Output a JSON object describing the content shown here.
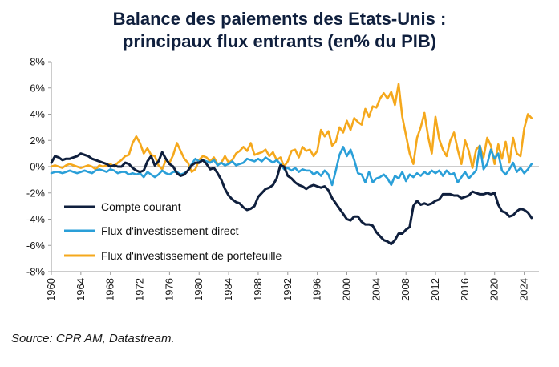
{
  "chart_data": {
    "type": "line",
    "title_line1": "Balance des paiements des Etats-Unis :",
    "title_line2": "principaux flux entrants (en% du PIB)",
    "xlabel": "",
    "ylabel": "",
    "xlim": [
      1960,
      2026
    ],
    "ylim": [
      -8,
      8
    ],
    "y_ticks": [
      8,
      6,
      4,
      2,
      0,
      -2,
      -4,
      -6,
      -8
    ],
    "y_tick_labels": [
      "8%",
      "6%",
      "4%",
      "2%",
      "0%",
      "-2%",
      "-4%",
      "-6%",
      "-8%"
    ],
    "x_ticks": [
      1960,
      1964,
      1968,
      1972,
      1976,
      1980,
      1984,
      1988,
      1992,
      1996,
      2000,
      2004,
      2008,
      2012,
      2016,
      2020,
      2024
    ],
    "x_tick_labels": [
      "1960",
      "1964",
      "1968",
      "1972",
      "1976",
      "1980",
      "1984",
      "1988",
      "1992",
      "1996",
      "2000",
      "2004",
      "2008",
      "2012",
      "2016",
      "2020",
      "2024"
    ],
    "legend_position": "bottom-left",
    "series": [
      {
        "name": "Compte courant",
        "color": "#0f1f3d",
        "x": [
          1960.0,
          1960.5,
          1961.0,
          1961.5,
          1962.0,
          1962.5,
          1963.0,
          1963.5,
          1964.0,
          1964.5,
          1965.0,
          1965.5,
          1966.0,
          1966.5,
          1967.0,
          1967.5,
          1968.0,
          1968.5,
          1969.0,
          1969.5,
          1970.0,
          1970.5,
          1971.0,
          1971.5,
          1972.0,
          1972.5,
          1973.0,
          1973.5,
          1974.0,
          1974.5,
          1975.0,
          1975.5,
          1976.0,
          1976.5,
          1977.0,
          1977.5,
          1978.0,
          1978.5,
          1979.0,
          1979.5,
          1980.0,
          1980.5,
          1981.0,
          1981.5,
          1982.0,
          1982.5,
          1983.0,
          1983.5,
          1984.0,
          1984.5,
          1985.0,
          1985.5,
          1986.0,
          1986.5,
          1987.0,
          1987.5,
          1988.0,
          1988.5,
          1989.0,
          1989.5,
          1990.0,
          1990.5,
          1991.0,
          1991.5,
          1992.0,
          1992.5,
          1993.0,
          1993.5,
          1994.0,
          1994.5,
          1995.0,
          1995.5,
          1996.0,
          1996.5,
          1997.0,
          1997.5,
          1998.0,
          1998.5,
          1999.0,
          1999.5,
          2000.0,
          2000.5,
          2001.0,
          2001.5,
          2002.0,
          2002.5,
          2003.0,
          2003.5,
          2004.0,
          2004.5,
          2005.0,
          2005.5,
          2006.0,
          2006.5,
          2007.0,
          2007.5,
          2008.0,
          2008.5,
          2009.0,
          2009.5,
          2010.0,
          2010.5,
          2011.0,
          2011.5,
          2012.0,
          2012.5,
          2013.0,
          2013.5,
          2014.0,
          2014.5,
          2015.0,
          2015.5,
          2016.0,
          2016.5,
          2017.0,
          2017.5,
          2018.0,
          2018.5,
          2019.0,
          2019.5,
          2020.0,
          2020.5,
          2021.0,
          2021.5,
          2022.0,
          2022.5,
          2023.0,
          2023.5,
          2024.0,
          2024.5,
          2025.0
        ],
        "values": [
          0.3,
          0.8,
          0.7,
          0.5,
          0.6,
          0.6,
          0.7,
          0.8,
          1.0,
          0.9,
          0.8,
          0.6,
          0.5,
          0.4,
          0.3,
          0.2,
          0.0,
          0.1,
          0.0,
          0.0,
          0.3,
          0.2,
          -0.1,
          -0.3,
          -0.4,
          -0.3,
          0.4,
          0.8,
          0.1,
          0.4,
          1.1,
          0.6,
          0.2,
          0.0,
          -0.5,
          -0.7,
          -0.6,
          -0.3,
          0.1,
          0.3,
          0.3,
          0.5,
          0.2,
          -0.2,
          -0.1,
          -0.5,
          -1.0,
          -1.7,
          -2.2,
          -2.5,
          -2.7,
          -2.8,
          -3.1,
          -3.3,
          -3.2,
          -3.0,
          -2.3,
          -2.0,
          -1.7,
          -1.6,
          -1.4,
          -0.9,
          0.1,
          0.0,
          -0.7,
          -0.9,
          -1.2,
          -1.4,
          -1.5,
          -1.7,
          -1.5,
          -1.4,
          -1.5,
          -1.6,
          -1.5,
          -1.8,
          -2.4,
          -2.8,
          -3.2,
          -3.6,
          -4.0,
          -4.1,
          -3.8,
          -3.8,
          -4.2,
          -4.4,
          -4.4,
          -4.5,
          -5.0,
          -5.3,
          -5.6,
          -5.7,
          -5.9,
          -5.6,
          -5.1,
          -5.1,
          -4.8,
          -4.6,
          -3.0,
          -2.6,
          -2.9,
          -2.8,
          -2.9,
          -2.8,
          -2.6,
          -2.5,
          -2.1,
          -2.1,
          -2.1,
          -2.2,
          -2.2,
          -2.4,
          -2.3,
          -2.2,
          -1.9,
          -2.0,
          -2.1,
          -2.1,
          -2.0,
          -2.1,
          -2.0,
          -2.9,
          -3.4,
          -3.5,
          -3.8,
          -3.7,
          -3.4,
          -3.2,
          -3.3,
          -3.5,
          -3.9
        ]
      },
      {
        "name": "Flux d'investissement direct",
        "color": "#2a9fd8",
        "x": [
          1960.0,
          1960.5,
          1961.0,
          1961.5,
          1962.0,
          1962.5,
          1963.0,
          1963.5,
          1964.0,
          1964.5,
          1965.0,
          1965.5,
          1966.0,
          1966.5,
          1967.0,
          1967.5,
          1968.0,
          1968.5,
          1969.0,
          1969.5,
          1970.0,
          1970.5,
          1971.0,
          1971.5,
          1972.0,
          1972.5,
          1973.0,
          1973.5,
          1974.0,
          1974.5,
          1975.0,
          1975.5,
          1976.0,
          1976.5,
          1977.0,
          1977.5,
          1978.0,
          1978.5,
          1979.0,
          1979.5,
          1980.0,
          1980.5,
          1981.0,
          1981.5,
          1982.0,
          1982.5,
          1983.0,
          1983.5,
          1984.0,
          1984.5,
          1985.0,
          1985.5,
          1986.0,
          1986.5,
          1987.0,
          1987.5,
          1988.0,
          1988.5,
          1989.0,
          1989.5,
          1990.0,
          1990.5,
          1991.0,
          1991.5,
          1992.0,
          1992.5,
          1993.0,
          1993.5,
          1994.0,
          1994.5,
          1995.0,
          1995.5,
          1996.0,
          1996.5,
          1997.0,
          1997.5,
          1998.0,
          1998.5,
          1999.0,
          1999.5,
          2000.0,
          2000.5,
          2001.0,
          2001.5,
          2002.0,
          2002.5,
          2003.0,
          2003.5,
          2004.0,
          2004.5,
          2005.0,
          2005.5,
          2006.0,
          2006.5,
          2007.0,
          2007.5,
          2008.0,
          2008.5,
          2009.0,
          2009.5,
          2010.0,
          2010.5,
          2011.0,
          2011.5,
          2012.0,
          2012.5,
          2013.0,
          2013.5,
          2014.0,
          2014.5,
          2015.0,
          2015.5,
          2016.0,
          2016.5,
          2017.0,
          2017.5,
          2018.0,
          2018.5,
          2019.0,
          2019.5,
          2020.0,
          2020.5,
          2021.0,
          2021.5,
          2022.0,
          2022.5,
          2023.0,
          2023.5,
          2024.0,
          2024.5,
          2025.0
        ],
        "values": [
          -0.5,
          -0.4,
          -0.4,
          -0.5,
          -0.4,
          -0.3,
          -0.4,
          -0.5,
          -0.4,
          -0.3,
          -0.4,
          -0.5,
          -0.3,
          -0.2,
          -0.3,
          -0.4,
          -0.2,
          -0.3,
          -0.5,
          -0.4,
          -0.4,
          -0.6,
          -0.5,
          -0.6,
          -0.5,
          -0.8,
          -0.4,
          -0.6,
          -0.8,
          -0.6,
          -0.3,
          -0.5,
          -0.6,
          -0.4,
          -0.4,
          -0.6,
          -0.5,
          -0.3,
          0.2,
          0.6,
          0.4,
          0.5,
          0.4,
          0.3,
          0.5,
          0.1,
          0.3,
          0.1,
          0.2,
          0.4,
          0.1,
          0.2,
          0.3,
          0.6,
          0.5,
          0.4,
          0.6,
          0.4,
          0.7,
          0.5,
          0.3,
          0.5,
          0.2,
          -0.2,
          -0.1,
          -0.3,
          -0.1,
          -0.4,
          -0.2,
          -0.3,
          -0.3,
          -0.6,
          -0.4,
          -0.7,
          -0.3,
          -0.6,
          -1.4,
          -0.3,
          0.9,
          1.5,
          0.8,
          1.3,
          0.5,
          -0.5,
          -0.6,
          -1.2,
          -0.4,
          -1.2,
          -0.9,
          -0.8,
          -0.6,
          -0.9,
          -1.4,
          -0.7,
          -0.9,
          -0.4,
          -1.1,
          -0.6,
          -0.8,
          -0.5,
          -0.7,
          -0.4,
          -0.6,
          -0.3,
          -0.5,
          -0.3,
          -0.7,
          -0.3,
          -0.6,
          -0.5,
          -1.2,
          -0.8,
          -0.4,
          -0.9,
          -0.6,
          -0.3,
          1.6,
          -0.2,
          0.2,
          1.3,
          0.6,
          1.0,
          -0.3,
          -0.6,
          -0.2,
          0.3,
          -0.4,
          -0.1,
          -0.5,
          -0.2,
          0.2
        ]
      },
      {
        "name": "Flux d'investissement de portefeuille",
        "color": "#f5a81c",
        "x": [
          1960.0,
          1960.5,
          1961.0,
          1961.5,
          1962.0,
          1962.5,
          1963.0,
          1963.5,
          1964.0,
          1964.5,
          1965.0,
          1965.5,
          1966.0,
          1966.5,
          1967.0,
          1967.5,
          1968.0,
          1968.5,
          1969.0,
          1969.5,
          1970.0,
          1970.5,
          1971.0,
          1971.5,
          1972.0,
          1972.5,
          1973.0,
          1973.5,
          1974.0,
          1974.5,
          1975.0,
          1975.5,
          1976.0,
          1976.5,
          1977.0,
          1977.5,
          1978.0,
          1978.5,
          1979.0,
          1979.5,
          1980.0,
          1980.5,
          1981.0,
          1981.5,
          1982.0,
          1982.5,
          1983.0,
          1983.5,
          1984.0,
          1984.5,
          1985.0,
          1985.5,
          1986.0,
          1986.5,
          1987.0,
          1987.5,
          1988.0,
          1988.5,
          1989.0,
          1989.5,
          1990.0,
          1990.5,
          1991.0,
          1991.5,
          1992.0,
          1992.5,
          1993.0,
          1993.5,
          1994.0,
          1994.5,
          1995.0,
          1995.5,
          1996.0,
          1996.5,
          1997.0,
          1997.5,
          1998.0,
          1998.5,
          1999.0,
          1999.5,
          2000.0,
          2000.5,
          2001.0,
          2001.5,
          2002.0,
          2002.5,
          2003.0,
          2003.5,
          2004.0,
          2004.5,
          2005.0,
          2005.5,
          2006.0,
          2006.5,
          2007.0,
          2007.5,
          2008.0,
          2008.5,
          2009.0,
          2009.5,
          2010.0,
          2010.5,
          2011.0,
          2011.5,
          2012.0,
          2012.5,
          2013.0,
          2013.5,
          2014.0,
          2014.5,
          2015.0,
          2015.5,
          2016.0,
          2016.5,
          2017.0,
          2017.5,
          2018.0,
          2018.5,
          2019.0,
          2019.5,
          2020.0,
          2020.5,
          2021.0,
          2021.5,
          2022.0,
          2022.5,
          2023.0,
          2023.5,
          2024.0,
          2024.5,
          2025.0
        ],
        "values": [
          0.0,
          0.1,
          0.0,
          -0.1,
          0.1,
          0.2,
          0.1,
          0.0,
          -0.1,
          0.0,
          0.1,
          0.0,
          -0.2,
          0.1,
          0.0,
          0.1,
          0.2,
          0.0,
          0.3,
          0.5,
          0.8,
          0.9,
          1.8,
          2.3,
          1.8,
          1.0,
          1.4,
          0.9,
          0.8,
          0.1,
          -0.2,
          0.5,
          0.3,
          0.9,
          1.8,
          1.2,
          0.6,
          0.3,
          -0.4,
          -0.2,
          0.5,
          0.8,
          0.7,
          0.4,
          0.7,
          0.2,
          0.3,
          0.8,
          0.3,
          0.5,
          1.0,
          1.2,
          1.5,
          1.2,
          1.8,
          0.9,
          1.0,
          1.1,
          1.3,
          0.8,
          1.1,
          0.5,
          0.7,
          0.0,
          0.4,
          1.2,
          1.3,
          0.7,
          1.5,
          1.2,
          1.3,
          0.8,
          1.2,
          2.8,
          2.3,
          2.7,
          1.6,
          1.9,
          3.0,
          2.6,
          3.5,
          2.8,
          3.7,
          3.4,
          3.2,
          4.4,
          3.8,
          4.6,
          4.5,
          5.2,
          5.6,
          5.2,
          5.7,
          4.7,
          6.3,
          3.8,
          2.4,
          1.0,
          0.2,
          2.2,
          3.0,
          4.1,
          2.3,
          1.0,
          3.8,
          2.1,
          1.3,
          0.8,
          2.0,
          2.6,
          1.3,
          0.2,
          2.0,
          1.2,
          -0.1,
          1.3,
          1.6,
          0.7,
          2.2,
          1.6,
          0.2,
          1.7,
          0.6,
          1.9,
          0.3,
          2.2,
          1.0,
          0.8,
          2.9,
          4.0,
          3.7
        ]
      }
    ]
  },
  "source": "Source: CPR AM, Datastream."
}
